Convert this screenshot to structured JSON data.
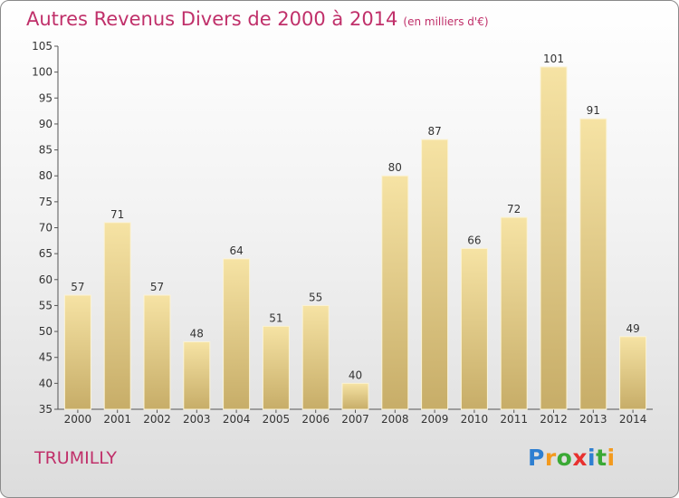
{
  "chart_data": {
    "type": "bar",
    "title": "Autres Revenus Divers de 2000 à 2014",
    "subtitle": "(en milliers d'€)",
    "categories": [
      "2000",
      "2001",
      "2002",
      "2003",
      "2004",
      "2005",
      "2006",
      "2007",
      "2008",
      "2009",
      "2010",
      "2011",
      "2012",
      "2013",
      "2014"
    ],
    "values": [
      57,
      71,
      57,
      48,
      64,
      51,
      55,
      40,
      80,
      87,
      66,
      72,
      101,
      91,
      49
    ],
    "ylim": [
      35,
      105
    ],
    "yticks": [
      35,
      40,
      45,
      50,
      55,
      60,
      65,
      70,
      75,
      80,
      85,
      90,
      95,
      100,
      105
    ],
    "bar_color_top": "#f6e3a4",
    "bar_color_bottom": "#c7ad68",
    "grid": false,
    "legend": "none"
  },
  "footer": {
    "town": "TRUMILLY",
    "logo_letters": [
      {
        "ch": "P",
        "color": "#2e7fd1"
      },
      {
        "ch": "r",
        "color": "#f39a1e"
      },
      {
        "ch": "o",
        "color": "#3aa935"
      },
      {
        "ch": "x",
        "color": "#e8312f"
      },
      {
        "ch": "i",
        "color": "#2e7fd1"
      },
      {
        "ch": "t",
        "color": "#3aa935"
      },
      {
        "ch": "i",
        "color": "#f39a1e"
      }
    ]
  },
  "colors": {
    "title": "#c0306a",
    "axis": "#555555"
  }
}
